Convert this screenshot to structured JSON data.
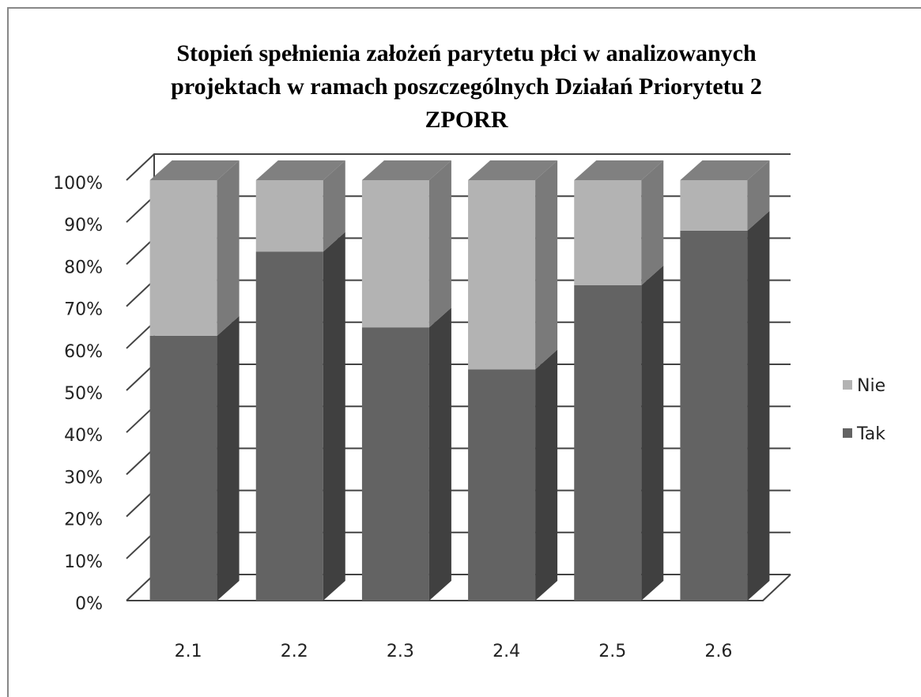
{
  "chart_data": {
    "type": "bar3d_stacked",
    "title_lines": [
      "Stopień spełnienia założeń parytetu płci w analizowanych",
      "projektach w ramach poszczególnych Działań Priorytetu 2",
      "ZPORR"
    ],
    "categories": [
      "2.1",
      "2.2",
      "2.3",
      "2.4",
      "2.5",
      "2.6"
    ],
    "series": [
      {
        "name": "Tak",
        "color": "#636363",
        "values": [
          63,
          83,
          65,
          55,
          75,
          88
        ]
      },
      {
        "name": "Nie",
        "color": "#b3b3b3",
        "values": [
          37,
          17,
          35,
          45,
          25,
          12
        ]
      }
    ],
    "ylim": [
      0,
      100
    ],
    "yticks": [
      {
        "value": 0,
        "label": "0%"
      },
      {
        "value": 10,
        "label": "10%"
      },
      {
        "value": 20,
        "label": "20%"
      },
      {
        "value": 30,
        "label": "30%"
      },
      {
        "value": 40,
        "label": "40%"
      },
      {
        "value": 50,
        "label": "50%"
      },
      {
        "value": 60,
        "label": "60%"
      },
      {
        "value": 70,
        "label": "70%"
      },
      {
        "value": 80,
        "label": "80%"
      },
      {
        "value": 90,
        "label": "90%"
      },
      {
        "value": 100,
        "label": "100%"
      }
    ],
    "grid": true,
    "legend": "right"
  }
}
